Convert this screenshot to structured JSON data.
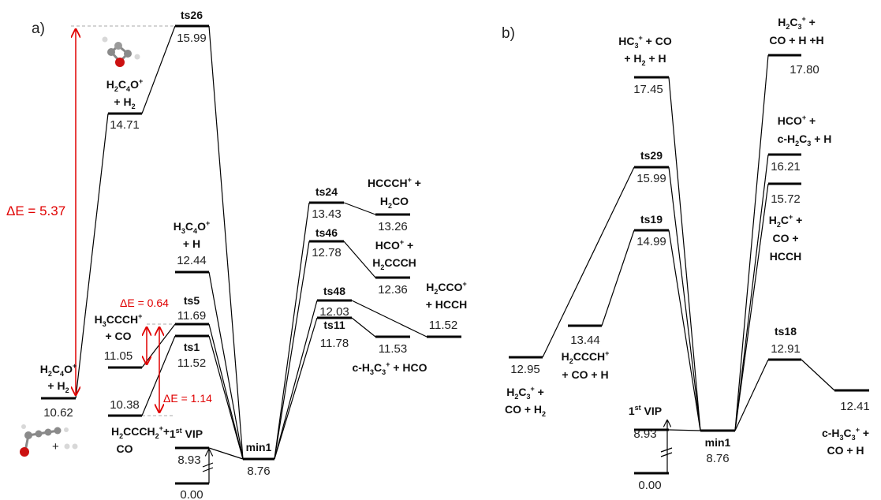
{
  "panel_a": {
    "tag": "a)",
    "delta_main": "ΔE = 5.37",
    "delta_small1": "ΔE = 0.64",
    "delta_small2": "ΔE = 1.14",
    "reactant": {
      "l1": "H2C4O+",
      "l2": "+ H2",
      "value": "10.62"
    },
    "h2c4o": {
      "l1": "H2C4O+",
      "l2": "+ H2",
      "value": "14.71"
    },
    "ts26": {
      "label": "ts26",
      "value": "15.99"
    },
    "h3c4o": {
      "l1": "H3C4O+",
      "l2": "+ H",
      "value": "12.44"
    },
    "ts5": {
      "label": "ts5",
      "value": "11.69"
    },
    "h3ccch": {
      "l1": "H3CCCH+",
      "l2": "+ CO",
      "value": "11.05"
    },
    "ts1": {
      "label": "ts1",
      "value": "11.52"
    },
    "h2ccch2": {
      "l1": "H2CCCH2+ +",
      "l2": "CO",
      "value": "10.38"
    },
    "vip": {
      "label": "1st VIP",
      "value": "8.93",
      "zero": "0.00"
    },
    "min1": {
      "label": "min1",
      "value": "8.76"
    },
    "ts24": {
      "label": "ts24",
      "value": "13.43"
    },
    "hccch_h2co": {
      "l1": "HCCCH+ +",
      "l2": "H2CO",
      "value": "13.26"
    },
    "ts46": {
      "label": "ts46",
      "value": "12.78"
    },
    "hco_h2ccch": {
      "l1": "HCO+ +",
      "l2": "H2CCCH",
      "value": "12.36"
    },
    "ts48": {
      "label": "ts48",
      "value": "12.03"
    },
    "ts11": {
      "label": "ts11",
      "value": "11.78"
    },
    "h2cco": {
      "l1": "H2CCO+",
      "l2": "+ HCCH",
      "value": "11.52"
    },
    "ch3c3": {
      "l1": "c-H3C3+ + HCO",
      "value": "11.53"
    }
  },
  "panel_b": {
    "tag": "b)",
    "h2c3_co_h2": {
      "l1": "H2C3+ +",
      "l2": "CO + H2",
      "value": "12.95"
    },
    "h2ccch": {
      "l1": "H2CCCH+",
      "l2": "+ CO + H",
      "value": "13.44"
    },
    "hc3": {
      "l1": "HC3+ + CO",
      "l2": "+ H2 + H",
      "value": "17.45"
    },
    "ts29": {
      "label": "ts29",
      "value": "15.99"
    },
    "ts19": {
      "label": "ts19",
      "value": "14.99"
    },
    "vip": {
      "label": "1st VIP",
      "value": "8.93",
      "zero": "0.00"
    },
    "min1": {
      "label": "min1",
      "value": "8.76"
    },
    "h2c3_h_h": {
      "l1": "H2C3+ +",
      "l2": "CO + H +H",
      "value": "17.80"
    },
    "hco_ch2c3": {
      "l1": "HCO+ +",
      "l2": "c-H2C3 + H",
      "value": "16.21"
    },
    "h2c": {
      "l1": "H2C+ +",
      "l2": "CO +",
      "l3": "HCCH",
      "value": "15.72"
    },
    "ts18": {
      "label": "ts18",
      "value": "12.91"
    },
    "ch3c3": {
      "l1": "c-H3C3+ +",
      "l2": "CO + H",
      "value": "12.41"
    }
  }
}
